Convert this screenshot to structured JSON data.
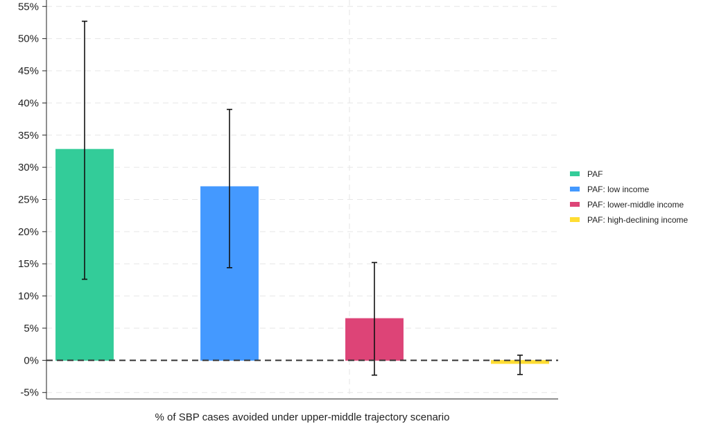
{
  "chart_data": {
    "type": "bar",
    "title": "",
    "xlabel": "% of SBP cases avoided under upper-middle trajectory scenario",
    "ylabel": "",
    "ylim": [
      -6,
      56
    ],
    "yticks": [
      -5,
      0,
      5,
      10,
      15,
      20,
      25,
      30,
      35,
      40,
      45,
      50,
      55
    ],
    "ytick_format": "{v}%",
    "grid": true,
    "zero_line": "dashed",
    "legend_position": "right",
    "bars": [
      {
        "name": "PAF",
        "value": 32.8,
        "ci_low": 12.6,
        "ci_high": 52.7,
        "color": "#33cc99"
      },
      {
        "name": "PAF: low income",
        "value": 27.0,
        "ci_low": 14.4,
        "ci_high": 39.0,
        "color": "#4499ff"
      },
      {
        "name": "PAF: lower-middle income",
        "value": 6.5,
        "ci_low": -2.3,
        "ci_high": 15.2,
        "color": "#dd4477"
      },
      {
        "name": "PAF: high-declining income",
        "value": -0.5,
        "ci_low": -2.2,
        "ci_high": 0.8,
        "color": "#ffdd33"
      }
    ]
  }
}
